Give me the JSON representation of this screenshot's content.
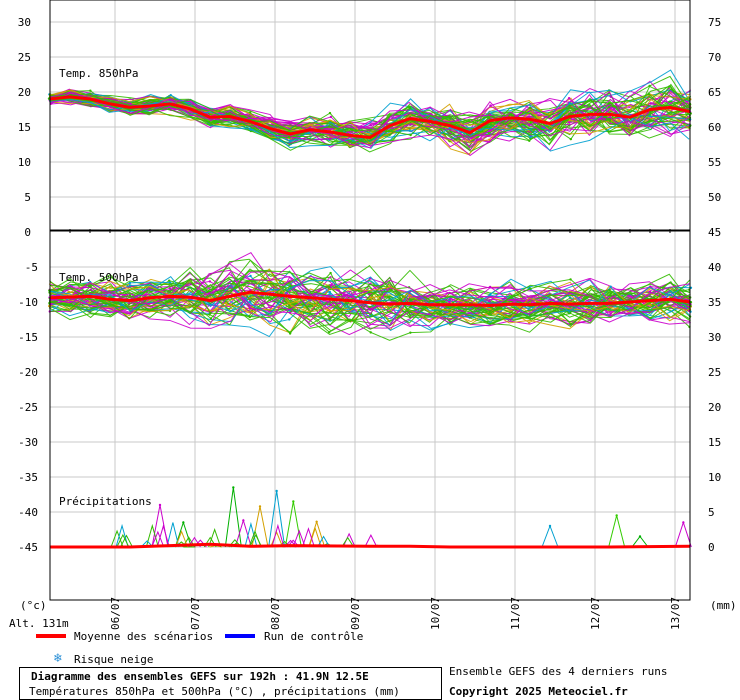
{
  "chart_data": [
    {
      "type": "line",
      "title": "Temp. 850hPa",
      "x_ticks": [
        "06/07",
        "07/07",
        "08/07",
        "09/07",
        "10/07",
        "11/07",
        "12/07",
        "13/07"
      ],
      "left_ticks": [
        30,
        25,
        20,
        15,
        10,
        5,
        0
      ],
      "right_ticks": [
        75,
        70,
        65,
        60,
        55,
        50,
        45
      ],
      "mean_series": {
        "name": "Moyenne des scénarios",
        "x": [
          0,
          6,
          12,
          18,
          24,
          30,
          36,
          42,
          48,
          54,
          60,
          66,
          72,
          78,
          84,
          90,
          96,
          102,
          108,
          114,
          120,
          126,
          132,
          138,
          144,
          150,
          156,
          162,
          168,
          174,
          180,
          186,
          192
        ],
        "values": [
          19,
          19.3,
          19,
          18.3,
          17.8,
          18,
          18.3,
          17.6,
          16.4,
          16.5,
          15.8,
          14.8,
          14,
          14.6,
          14.3,
          13.8,
          13.5,
          15.2,
          16.2,
          15.8,
          15.2,
          14.2,
          15.9,
          16.3,
          16.1,
          15.5,
          16.5,
          16.8,
          16.8,
          16.4,
          17.5,
          17.8,
          17.2
        ]
      },
      "colors": {
        "mean": "#ff0000",
        "control": "#0000ff",
        "members": [
          "#00b000",
          "#cc00cc",
          "#d4a000",
          "#00a0d0",
          "#33cc00"
        ]
      }
    },
    {
      "type": "line",
      "title": "Temp. 500hPa",
      "left_ticks": [
        -5,
        -10,
        -15,
        -20,
        -25,
        -30,
        -35,
        -40,
        -45
      ],
      "right_ticks": [
        40,
        35,
        30,
        25,
        20,
        15,
        10,
        5,
        0
      ],
      "mean_series": {
        "name": "Moyenne des scénarios",
        "x": [
          0,
          6,
          12,
          18,
          24,
          30,
          36,
          42,
          48,
          54,
          60,
          66,
          72,
          78,
          84,
          90,
          96,
          102,
          108,
          114,
          120,
          126,
          132,
          138,
          144,
          150,
          156,
          162,
          168,
          174,
          180,
          186,
          192
        ],
        "values": [
          -9.4,
          -9.3,
          -9.2,
          -9.6,
          -9.8,
          -9.4,
          -9.2,
          -9.3,
          -9.8,
          -9.2,
          -8.6,
          -8.9,
          -9.2,
          -9.4,
          -9.6,
          -9.8,
          -10.1,
          -10.3,
          -10.2,
          -10.4,
          -10.4,
          -10.4,
          -10.5,
          -10.3,
          -10.4,
          -10.2,
          -10.3,
          -10.2,
          -10.2,
          -10.0,
          -9.8,
          -9.6,
          -10.0
        ]
      }
    },
    {
      "type": "line",
      "title": "Précipitations",
      "unit_left": "(°c)",
      "unit_right": "(mm)",
      "right_ticks": [
        10,
        5,
        0
      ],
      "mean_series": {
        "name": "Moyenne des scénarios",
        "x": [
          0,
          24,
          48,
          60,
          72,
          96,
          108,
          120,
          144,
          168,
          192
        ],
        "values": [
          0,
          0,
          0.4,
          0.1,
          0.2,
          0.1,
          0.1,
          0,
          0,
          0,
          0.1
        ]
      },
      "spikes_mm": [
        {
          "x": 55,
          "v": 8.5
        },
        {
          "x": 58,
          "v": 3.8
        },
        {
          "x": 63,
          "v": 5.8
        },
        {
          "x": 68,
          "v": 8.0
        },
        {
          "x": 73,
          "v": 6.5
        },
        {
          "x": 40,
          "v": 3.5
        },
        {
          "x": 33,
          "v": 6.0
        },
        {
          "x": 80,
          "v": 3.6
        },
        {
          "x": 150,
          "v": 3.0
        },
        {
          "x": 170,
          "v": 4.5
        },
        {
          "x": 177,
          "v": 1.5
        },
        {
          "x": 190,
          "v": 3.5
        }
      ]
    }
  ],
  "labels": {
    "alt": "Alt. 131m",
    "legend_mean": "Moyenne des scénarios",
    "legend_control": "Run de contrôle",
    "legend_snow": "Risque neige",
    "box_title": "Diagramme des ensembles GEFS sur 192h : 41.9N 12.5E",
    "box_sub": "Températures 850hPa et 500hPa (°C) , précipitations (mm)",
    "runs": "Ensemble GEFS des 4 derniers runs",
    "copyright": "Copyright 2025 Meteociel.fr"
  }
}
